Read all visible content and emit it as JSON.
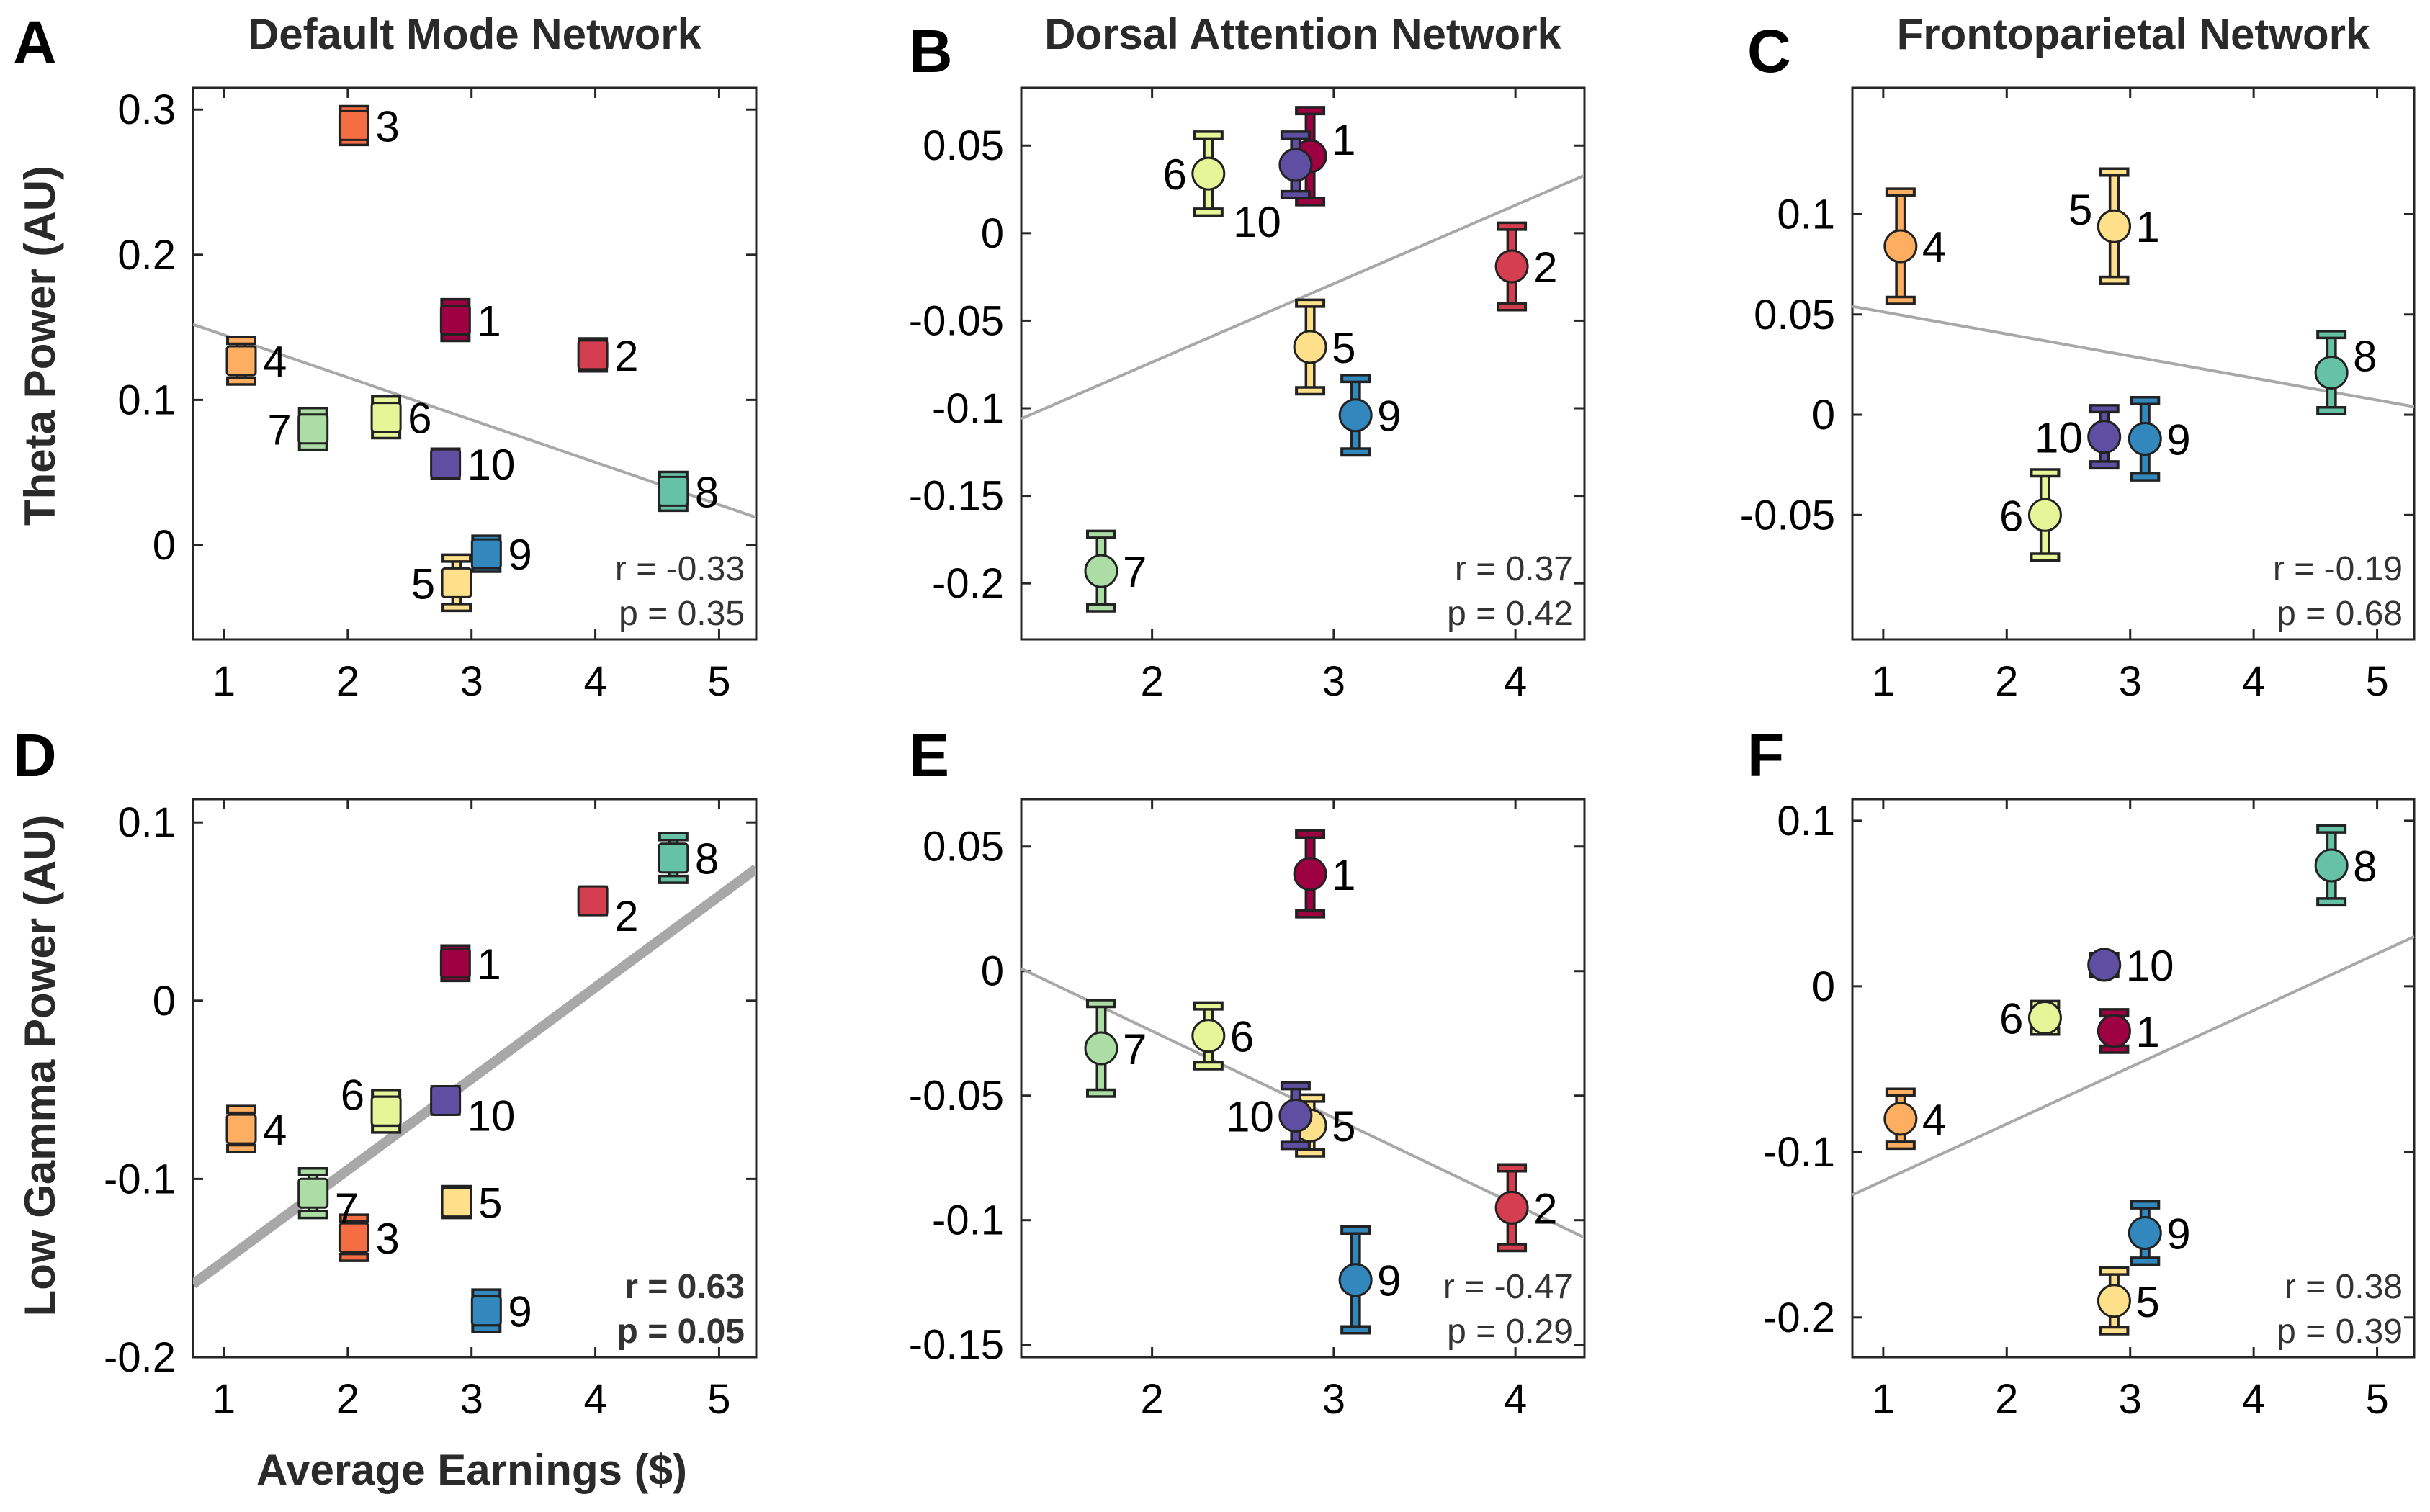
{
  "figure": {
    "y_label_top": "Theta Power  (AU)",
    "y_label_bottom": "Low Gamma Power  (AU)",
    "x_label": "Average Earnings ($)"
  },
  "colors": {
    "1": "#9e0142",
    "2": "#d53e4f",
    "3": "#f46d43",
    "4": "#fdae61",
    "5": "#fee08b",
    "6": "#e6f598",
    "7": "#abdda4",
    "8": "#66c2a5",
    "9": "#3288bd",
    "10": "#5e4fa2"
  },
  "chart_data": [
    {
      "id": "A",
      "type": "scatter",
      "letter": "A",
      "title": "Default Mode Network",
      "marker": "square",
      "xlim": [
        0.75,
        5.3
      ],
      "ylim": [
        -0.065,
        0.315
      ],
      "xticks": [
        1,
        2,
        3,
        4,
        5
      ],
      "yticks": [
        0,
        0.1,
        0.2,
        0.3
      ],
      "ytick_labels": [
        "0",
        "0.1",
        "0.2",
        "0.3"
      ],
      "points": [
        {
          "label": "1",
          "x": 2.87,
          "y": 0.155,
          "err": 0.012,
          "label_side": "right"
        },
        {
          "label": "2",
          "x": 3.98,
          "y": 0.131,
          "err": 0.009,
          "label_side": "right"
        },
        {
          "label": "3",
          "x": 2.05,
          "y": 0.289,
          "err": 0.011,
          "label_side": "right"
        },
        {
          "label": "4",
          "x": 1.14,
          "y": 0.127,
          "err": 0.014,
          "label_side": "right"
        },
        {
          "label": "5",
          "x": 2.88,
          "y": -0.026,
          "err": 0.017,
          "label_side": "left"
        },
        {
          "label": "6",
          "x": 2.31,
          "y": 0.088,
          "err": 0.012,
          "label_side": "right"
        },
        {
          "label": "7",
          "x": 1.72,
          "y": 0.08,
          "err": 0.012,
          "label_side": "left"
        },
        {
          "label": "8",
          "x": 4.63,
          "y": 0.037,
          "err": 0.011,
          "label_side": "right"
        },
        {
          "label": "9",
          "x": 3.12,
          "y": -0.006,
          "err": 0.01,
          "label_side": "right"
        },
        {
          "label": "10",
          "x": 2.79,
          "y": 0.056,
          "err": 0.008,
          "label_side": "right"
        }
      ],
      "fit": {
        "x": [
          0.75,
          5.3
        ],
        "y": [
          0.152,
          0.019
        ],
        "thick": false
      },
      "r_text": "r = -0.33",
      "p_text": "p = 0.35",
      "bold_stats": false
    },
    {
      "id": "B",
      "type": "scatter",
      "letter": "B",
      "title": "Dorsal Attention Network",
      "marker": "circle",
      "xlim": [
        1.28,
        4.38
      ],
      "ylim": [
        -0.232,
        0.083
      ],
      "xticks": [
        2,
        3,
        4
      ],
      "yticks": [
        0.05,
        0,
        -0.05,
        -0.1,
        -0.15,
        -0.2
      ],
      "ytick_labels": [
        "0.05",
        "0",
        "-0.05",
        "-0.1",
        "-0.15",
        "-0.2"
      ],
      "points": [
        {
          "label": "1",
          "x": 2.87,
          "y": 0.044,
          "err": 0.026,
          "label_side": "right-up"
        },
        {
          "label": "2",
          "x": 3.98,
          "y": -0.019,
          "err": 0.023,
          "label_side": "right"
        },
        {
          "label": "5",
          "x": 2.87,
          "y": -0.065,
          "err": 0.025,
          "label_side": "right"
        },
        {
          "label": "6",
          "x": 2.31,
          "y": 0.034,
          "err": 0.022,
          "label_side": "left"
        },
        {
          "label": "7",
          "x": 1.72,
          "y": -0.193,
          "err": 0.021,
          "label_side": "right"
        },
        {
          "label": "9",
          "x": 3.12,
          "y": -0.104,
          "err": 0.021,
          "label_side": "right"
        },
        {
          "label": "10",
          "x": 2.79,
          "y": 0.039,
          "err": 0.017,
          "label_side": "below-left"
        }
      ],
      "fit": {
        "x": [
          1.28,
          4.38
        ],
        "y": [
          -0.106,
          0.033
        ],
        "thick": false
      },
      "r_text": "r = 0.37",
      "p_text": "p = 0.42",
      "bold_stats": false
    },
    {
      "id": "C",
      "type": "scatter",
      "letter": "C",
      "title": "Frontoparietal Network",
      "marker": "circle",
      "xlim": [
        0.75,
        5.3
      ],
      "ylim": [
        -0.112,
        0.163
      ],
      "xticks": [
        1,
        2,
        3,
        4,
        5
      ],
      "yticks": [
        0.1,
        0.05,
        0,
        -0.05
      ],
      "ytick_labels": [
        "0.1",
        "0.05",
        "0",
        "-0.05"
      ],
      "points": [
        {
          "label": "1",
          "x": 2.87,
          "y": 0.094,
          "err": 0.027,
          "label_side": "right"
        },
        {
          "label": "4",
          "x": 1.14,
          "y": 0.084,
          "err": 0.027,
          "label_side": "right"
        },
        {
          "label": "5",
          "x": 2.87,
          "y": 0.094,
          "err": 0.027,
          "label_side": "left-up"
        },
        {
          "label": "6",
          "x": 2.31,
          "y": -0.05,
          "err": 0.021,
          "label_side": "left"
        },
        {
          "label": "8",
          "x": 4.63,
          "y": 0.021,
          "err": 0.019,
          "label_side": "right-up"
        },
        {
          "label": "9",
          "x": 3.12,
          "y": -0.012,
          "err": 0.019,
          "label_side": "right"
        },
        {
          "label": "10",
          "x": 2.79,
          "y": -0.011,
          "err": 0.014,
          "label_side": "left"
        }
      ],
      "fit": {
        "x": [
          0.75,
          5.3
        ],
        "y": [
          0.054,
          0.004
        ],
        "thick": false
      },
      "r_text": "r = -0.19",
      "p_text": "p = 0.68",
      "bold_stats": false
    },
    {
      "id": "D",
      "type": "scatter",
      "letter": "D",
      "title": "",
      "marker": "square",
      "xlim": [
        0.75,
        5.3
      ],
      "ylim": [
        -0.2,
        0.113
      ],
      "xticks": [
        1,
        2,
        3,
        4,
        5
      ],
      "yticks": [
        0.1,
        0,
        -0.1,
        -0.2
      ],
      "ytick_labels": [
        "0.1",
        "0",
        "-0.1",
        "-0.2"
      ],
      "points": [
        {
          "label": "1",
          "x": 2.87,
          "y": 0.021,
          "err": 0.008,
          "label_side": "right"
        },
        {
          "label": "2",
          "x": 3.98,
          "y": 0.056,
          "err": 0.006,
          "label_side": "right-down"
        },
        {
          "label": "3",
          "x": 2.05,
          "y": -0.133,
          "err": 0.011,
          "label_side": "right"
        },
        {
          "label": "4",
          "x": 1.14,
          "y": -0.072,
          "err": 0.011,
          "label_side": "right"
        },
        {
          "label": "5",
          "x": 2.88,
          "y": -0.113,
          "err": 0.007,
          "label_side": "right"
        },
        {
          "label": "6",
          "x": 2.31,
          "y": -0.062,
          "err": 0.01,
          "label_side": "left-up"
        },
        {
          "label": "7",
          "x": 1.72,
          "y": -0.108,
          "err": 0.012,
          "label_side": "right-down"
        },
        {
          "label": "8",
          "x": 4.63,
          "y": 0.08,
          "err": 0.012,
          "label_side": "right"
        },
        {
          "label": "9",
          "x": 3.12,
          "y": -0.174,
          "err": 0.01,
          "label_side": "right"
        },
        {
          "label": "10",
          "x": 2.79,
          "y": -0.056,
          "err": 0.006,
          "label_side": "right-down"
        }
      ],
      "fit": {
        "x": [
          0.75,
          5.3
        ],
        "y": [
          -0.159,
          0.074
        ],
        "thick": true
      },
      "r_text": "r = 0.63",
      "p_text": "p = 0.05",
      "bold_stats": true
    },
    {
      "id": "E",
      "type": "scatter",
      "letter": "E",
      "title": "",
      "marker": "circle",
      "xlim": [
        1.28,
        4.38
      ],
      "ylim": [
        -0.155,
        0.069
      ],
      "xticks": [
        2,
        3,
        4
      ],
      "yticks": [
        0.05,
        0,
        -0.05,
        -0.1,
        -0.15
      ],
      "ytick_labels": [
        "0.05",
        "0",
        "-0.05",
        "-0.1",
        "-0.15"
      ],
      "points": [
        {
          "label": "1",
          "x": 2.87,
          "y": 0.039,
          "err": 0.016,
          "label_side": "right"
        },
        {
          "label": "2",
          "x": 3.98,
          "y": -0.095,
          "err": 0.016,
          "label_side": "right"
        },
        {
          "label": "5",
          "x": 2.87,
          "y": -0.062,
          "err": 0.011,
          "label_side": "right"
        },
        {
          "label": "6",
          "x": 2.31,
          "y": -0.026,
          "err": 0.012,
          "label_side": "right"
        },
        {
          "label": "7",
          "x": 1.72,
          "y": -0.031,
          "err": 0.018,
          "label_side": "right"
        },
        {
          "label": "9",
          "x": 3.12,
          "y": -0.124,
          "err": 0.02,
          "label_side": "right"
        },
        {
          "label": "10",
          "x": 2.79,
          "y": -0.058,
          "err": 0.012,
          "label_side": "left"
        }
      ],
      "fit": {
        "x": [
          1.28,
          4.38
        ],
        "y": [
          0.001,
          -0.107
        ],
        "thick": false
      },
      "r_text": "r = -0.47",
      "p_text": "p = 0.29",
      "bold_stats": false
    },
    {
      "id": "F",
      "type": "scatter",
      "letter": "F",
      "title": "",
      "marker": "circle",
      "xlim": [
        0.75,
        5.3
      ],
      "ylim": [
        -0.224,
        0.113
      ],
      "xticks": [
        1,
        2,
        3,
        4,
        5
      ],
      "yticks": [
        0.1,
        0,
        -0.1,
        -0.2
      ],
      "ytick_labels": [
        "0.1",
        "0",
        "-0.1",
        "-0.2"
      ],
      "points": [
        {
          "label": "1",
          "x": 2.87,
          "y": -0.027,
          "err": 0.011,
          "label_side": "right"
        },
        {
          "label": "4",
          "x": 1.14,
          "y": -0.08,
          "err": 0.016,
          "label_side": "right"
        },
        {
          "label": "5",
          "x": 2.87,
          "y": -0.19,
          "err": 0.018,
          "label_side": "right"
        },
        {
          "label": "6",
          "x": 2.31,
          "y": -0.019,
          "err": 0.008,
          "label_side": "left"
        },
        {
          "label": "8",
          "x": 4.63,
          "y": 0.073,
          "err": 0.022,
          "label_side": "right"
        },
        {
          "label": "9",
          "x": 3.12,
          "y": -0.149,
          "err": 0.017,
          "label_side": "right"
        },
        {
          "label": "10",
          "x": 2.79,
          "y": 0.013,
          "err": 0.005,
          "label_side": "right"
        }
      ],
      "fit": {
        "x": [
          0.75,
          5.3
        ],
        "y": [
          -0.126,
          0.03
        ],
        "thick": false
      },
      "r_text": "r = 0.38",
      "p_text": "p = 0.39",
      "bold_stats": false
    }
  ]
}
